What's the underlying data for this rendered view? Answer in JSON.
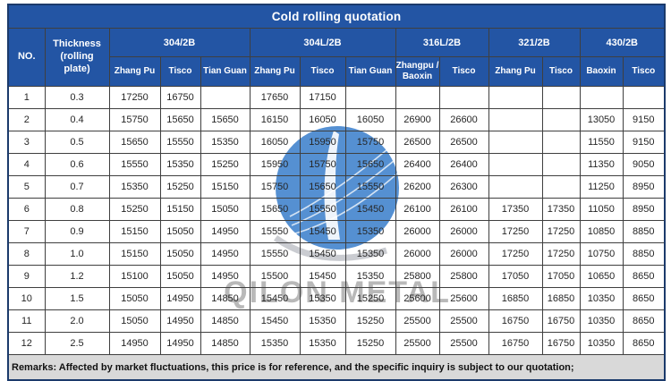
{
  "title": "Cold rolling quotation",
  "remarks": "Remarks: Affected by market fluctuations, this price is for reference, and the specific inquiry is subject to our quotation;",
  "watermark": {
    "text": "QILON METAL"
  },
  "colors": {
    "header_blue": "#2355A4",
    "remarks_bg": "#D9D9D9",
    "watermark_blue": "#3078C8",
    "watermark_gray": "#A6A6A6"
  },
  "table": {
    "no_header": "NO.",
    "thickness_header": "Thickness (rolling plate)",
    "groups": [
      {
        "label": "304/2B",
        "suppliers": [
          "Zhang Pu",
          "Tisco",
          "Tian Guan"
        ]
      },
      {
        "label": "304L/2B",
        "suppliers": [
          "Zhang Pu",
          "Tisco",
          "Tian Guan"
        ]
      },
      {
        "label": "316L/2B",
        "suppliers": [
          "Zhangpu / Baoxin",
          "Tisco"
        ]
      },
      {
        "label": "321/2B",
        "suppliers": [
          "Zhang Pu",
          "Tisco"
        ]
      },
      {
        "label": "430/2B",
        "suppliers": [
          "Baoxin",
          "Tisco"
        ]
      }
    ],
    "rows": [
      {
        "no": "1",
        "thickness": "0.3",
        "values": [
          "17250",
          "16750",
          "",
          "17650",
          "17150",
          "",
          "",
          "",
          "",
          "",
          "",
          ""
        ]
      },
      {
        "no": "2",
        "thickness": "0.4",
        "values": [
          "15750",
          "15650",
          "15650",
          "16150",
          "16050",
          "16050",
          "26900",
          "26600",
          "",
          "",
          "13050",
          "9150"
        ]
      },
      {
        "no": "3",
        "thickness": "0.5",
        "values": [
          "15650",
          "15550",
          "15350",
          "16050",
          "15950",
          "15750",
          "26500",
          "26500",
          "",
          "",
          "11550",
          "9150"
        ]
      },
      {
        "no": "4",
        "thickness": "0.6",
        "values": [
          "15550",
          "15350",
          "15250",
          "15950",
          "15750",
          "15650",
          "26400",
          "26400",
          "",
          "",
          "11350",
          "9050"
        ]
      },
      {
        "no": "5",
        "thickness": "0.7",
        "values": [
          "15350",
          "15250",
          "15150",
          "15750",
          "15650",
          "15550",
          "26200",
          "26300",
          "",
          "",
          "11250",
          "8950"
        ]
      },
      {
        "no": "6",
        "thickness": "0.8",
        "values": [
          "15250",
          "15150",
          "15050",
          "15650",
          "15550",
          "15450",
          "26100",
          "26100",
          "17350",
          "17350",
          "11050",
          "8950"
        ]
      },
      {
        "no": "7",
        "thickness": "0.9",
        "values": [
          "15150",
          "15050",
          "14950",
          "15550",
          "15450",
          "15350",
          "26000",
          "26000",
          "17250",
          "17250",
          "10850",
          "8850"
        ]
      },
      {
        "no": "8",
        "thickness": "1.0",
        "values": [
          "15150",
          "15050",
          "14950",
          "15550",
          "15450",
          "15350",
          "26000",
          "26000",
          "17250",
          "17250",
          "10750",
          "8850"
        ]
      },
      {
        "no": "9",
        "thickness": "1.2",
        "values": [
          "15100",
          "15050",
          "14950",
          "15500",
          "15450",
          "15350",
          "25800",
          "25800",
          "17050",
          "17050",
          "10650",
          "8650"
        ]
      },
      {
        "no": "10",
        "thickness": "1.5",
        "values": [
          "15050",
          "14950",
          "14850",
          "15450",
          "15350",
          "15250",
          "25600",
          "25600",
          "16850",
          "16850",
          "10350",
          "8650"
        ]
      },
      {
        "no": "11",
        "thickness": "2.0",
        "values": [
          "15050",
          "14950",
          "14850",
          "15450",
          "15350",
          "15250",
          "25500",
          "25500",
          "16750",
          "16750",
          "10350",
          "8650"
        ]
      },
      {
        "no": "12",
        "thickness": "2.5",
        "values": [
          "14950",
          "14950",
          "14850",
          "15350",
          "15350",
          "15250",
          "25500",
          "25500",
          "16750",
          "16750",
          "10350",
          "8650"
        ]
      }
    ]
  }
}
